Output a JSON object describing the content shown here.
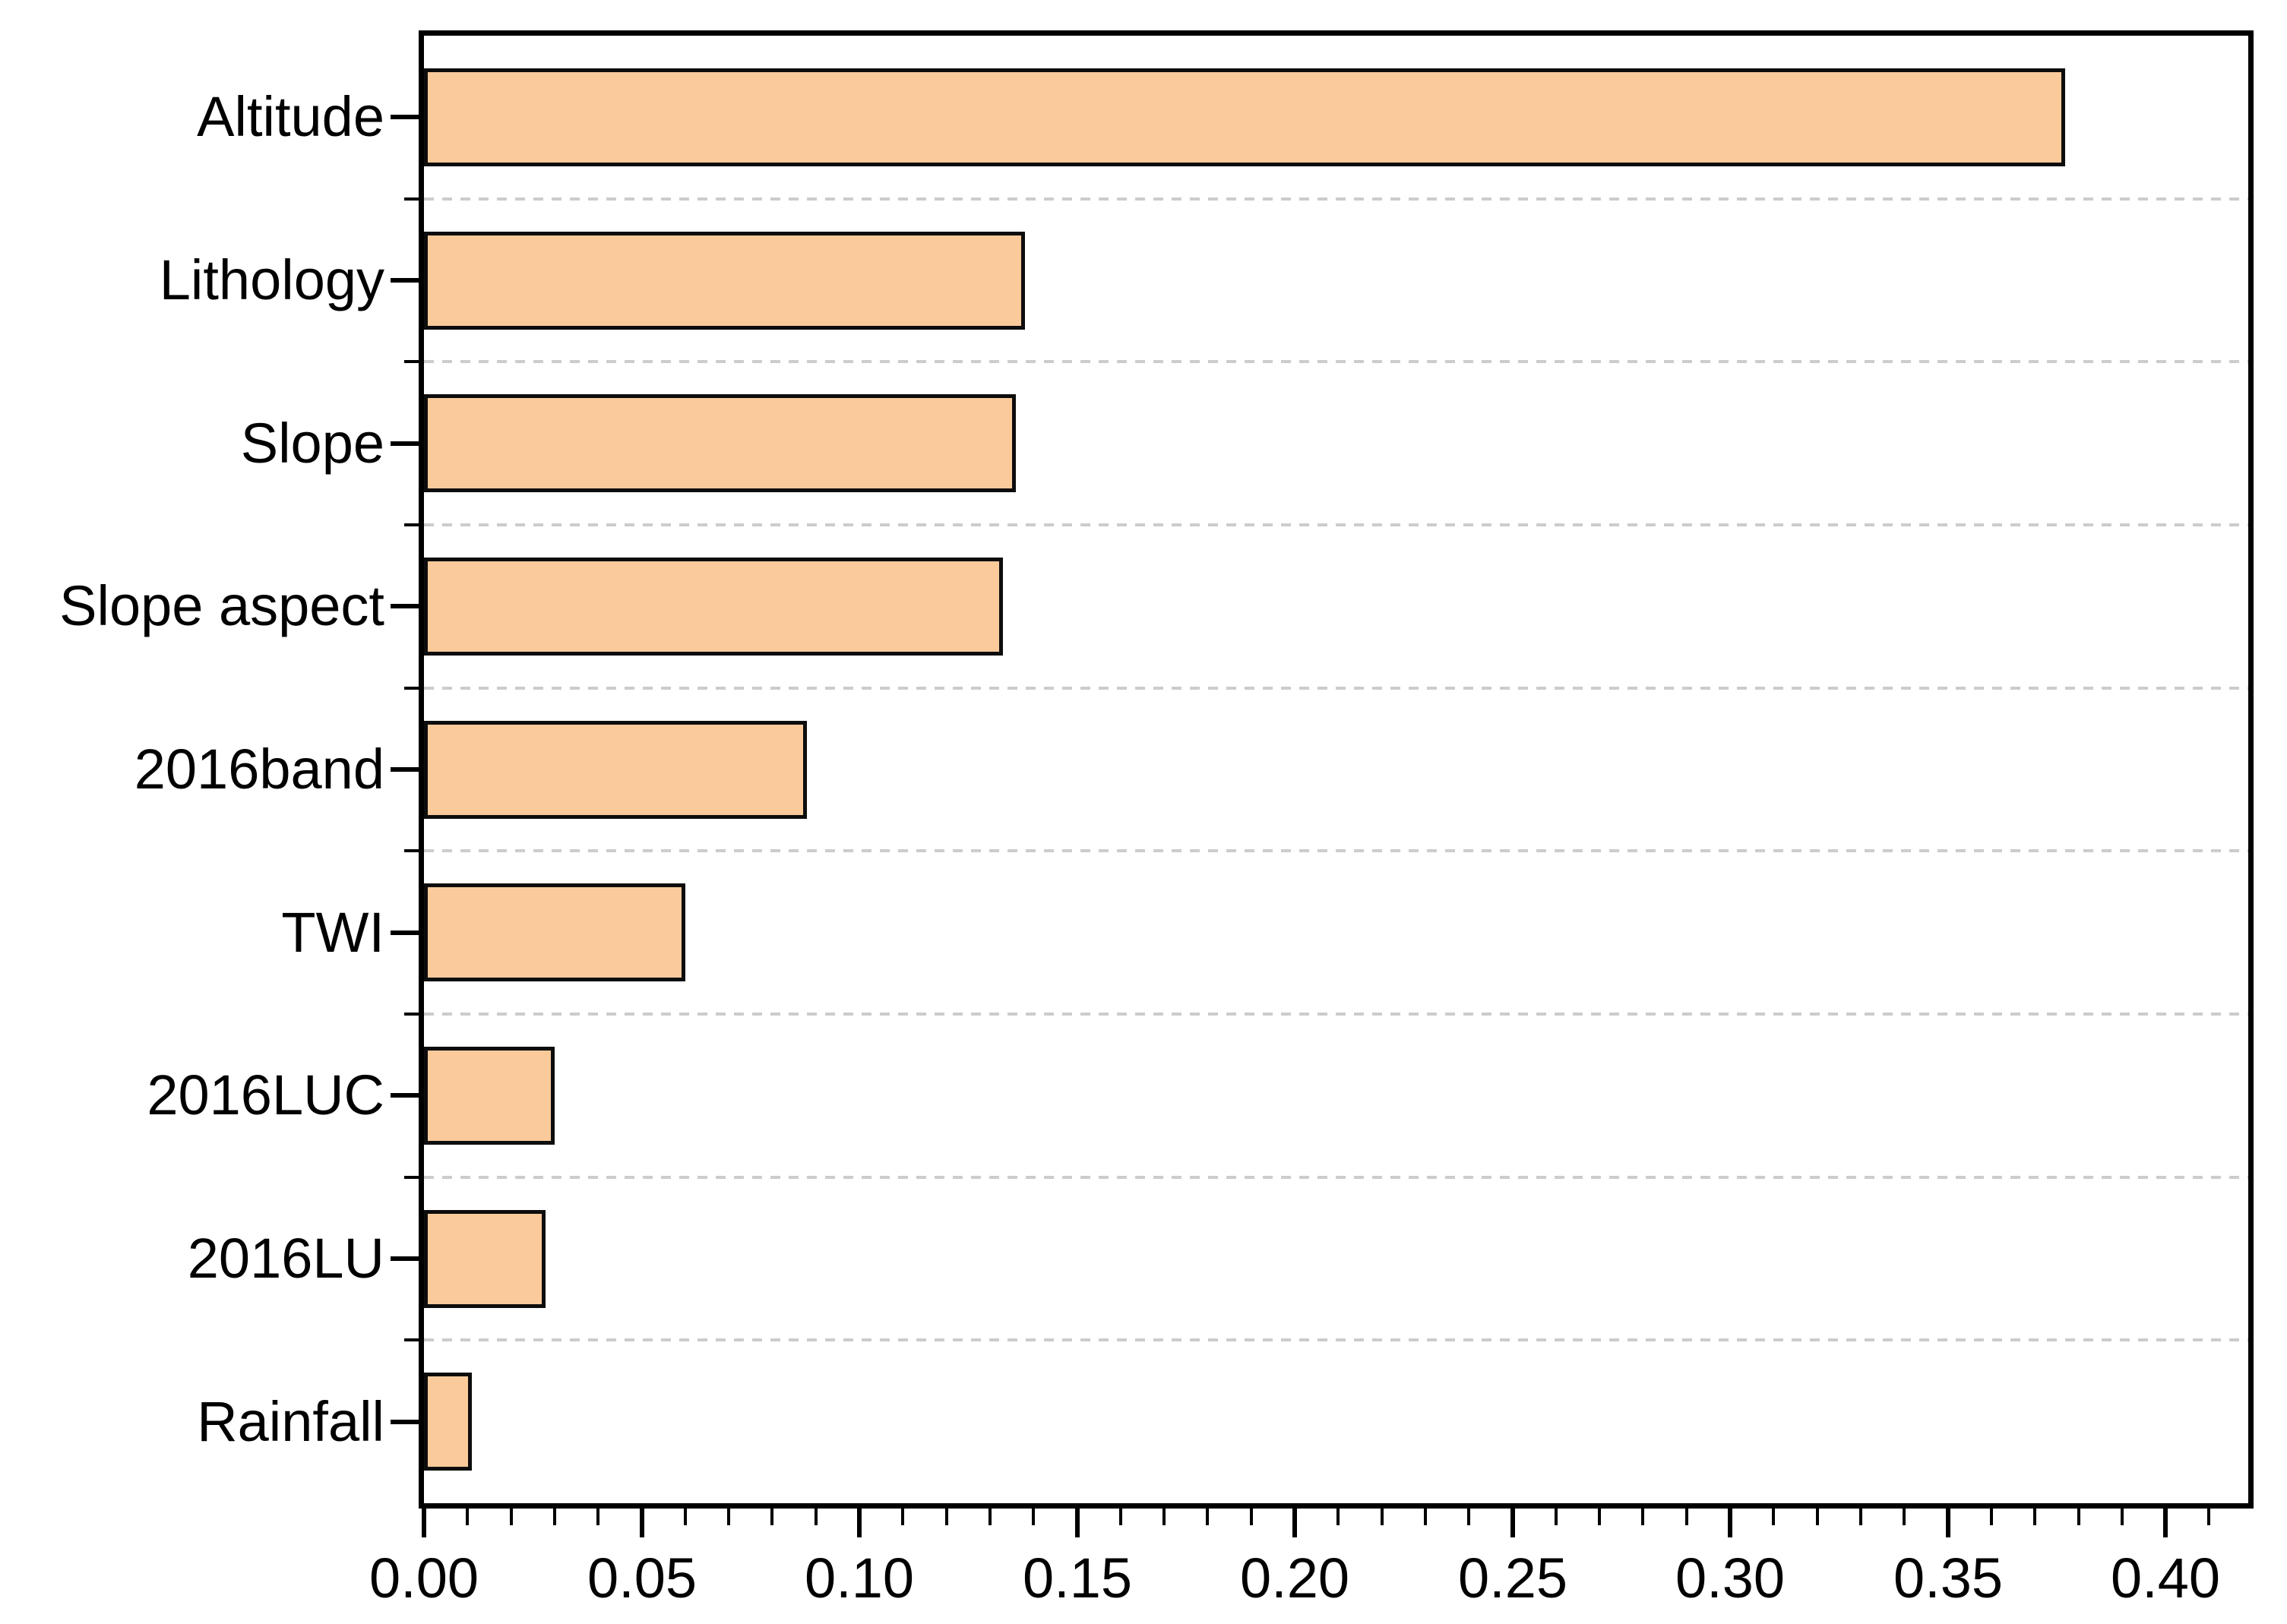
{
  "chart_data": {
    "type": "bar",
    "orientation": "horizontal",
    "title": "",
    "xlabel": "",
    "ylabel": "",
    "categories": [
      "Altitude",
      "Lithology",
      "Slope",
      "Slope aspect",
      "2016band",
      "TWI",
      "2016LUC",
      "2016LU",
      "Rainfall"
    ],
    "values": [
      0.377,
      0.138,
      0.136,
      0.133,
      0.088,
      0.06,
      0.03,
      0.028,
      0.011
    ],
    "xlim": [
      0,
      0.419
    ],
    "x_major_tick_step": 0.05,
    "x_minor_tick_step": 0.01,
    "x_tick_labels": [
      "0.00",
      "0.05",
      "0.10",
      "0.15",
      "0.20",
      "0.25",
      "0.30",
      "0.35",
      "0.40"
    ],
    "grid": "dashed horizontal separators between category slots",
    "legend_position": "none",
    "colors": {
      "bar_fill": "#FACA9B",
      "bar_border": "#0d0d0d",
      "gridline": "#cccccc",
      "axis": "#000000",
      "text": "#000000",
      "background": "#ffffff"
    }
  }
}
